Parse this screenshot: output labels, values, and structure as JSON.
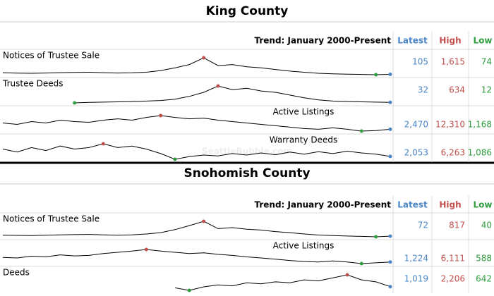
{
  "watermark": "SeattleBubble.com",
  "sections": [
    {
      "title": "King County",
      "trend_label": "Trend: January 2000-Present",
      "headers": {
        "latest": "Latest",
        "high": "High",
        "low": "Low"
      },
      "rows": [
        {
          "label": "Notices of Trustee Sale",
          "latest": "105",
          "high": "1,615",
          "low": "74",
          "trend": [
            250,
            220,
            200,
            230,
            260,
            280,
            300,
            260,
            230,
            250,
            300,
            450,
            700,
            1000,
            1615,
            900,
            1000,
            800,
            700,
            550,
            400,
            300,
            200,
            150,
            120,
            100,
            74,
            105
          ]
        },
        {
          "label": "Trustee Deeds",
          "latest": "32",
          "high": "634",
          "low": "12",
          "trend": [
            null,
            null,
            null,
            null,
            null,
            12,
            30,
            40,
            50,
            60,
            80,
            100,
            150,
            250,
            400,
            634,
            500,
            550,
            450,
            400,
            300,
            200,
            120,
            80,
            60,
            50,
            40,
            32
          ]
        },
        {
          "label": "Active Listings",
          "latest": "2,470",
          "high": "12,310",
          "low": "1,168",
          "trend": [
            7000,
            6000,
            8000,
            7000,
            9000,
            8000,
            7500,
            9000,
            10000,
            9000,
            11000,
            12310,
            11000,
            10000,
            10500,
            9000,
            8000,
            7000,
            6000,
            5000,
            4000,
            3000,
            2500,
            3500,
            2500,
            1168,
            1500,
            2470
          ]
        },
        {
          "label": "Warranty Deeds",
          "latest": "2,053",
          "high": "6,263",
          "low": "1,086",
          "trend": [
            4500,
            3500,
            5000,
            4000,
            5500,
            4500,
            5000,
            6263,
            5000,
            5500,
            4500,
            3000,
            1086,
            2000,
            2500,
            2200,
            3000,
            2500,
            3200,
            2600,
            3500,
            2800,
            3600,
            3000,
            3800,
            3200,
            2800,
            2053
          ]
        }
      ]
    },
    {
      "title": "Snohomish County",
      "trend_label": "Trend: January 2000-Present",
      "headers": {
        "latest": "Latest",
        "high": "High",
        "low": "Low"
      },
      "rows": [
        {
          "label": "Notices of Trustee Sale",
          "latest": "72",
          "high": "817",
          "low": "40",
          "trend": [
            120,
            110,
            100,
            120,
            140,
            150,
            160,
            140,
            120,
            140,
            180,
            250,
            400,
            600,
            817,
            450,
            500,
            420,
            380,
            300,
            250,
            180,
            130,
            100,
            80,
            60,
            40,
            72
          ]
        },
        {
          "label": "Active Listings",
          "latest": "1,224",
          "high": "6,111",
          "low": "588",
          "trend": [
            3000,
            2800,
            3500,
            3200,
            4000,
            3600,
            3800,
            4500,
            5000,
            5500,
            6111,
            5500,
            5000,
            4500,
            4800,
            4200,
            3800,
            3200,
            2800,
            2300,
            1800,
            1400,
            1200,
            1600,
            1200,
            588,
            900,
            1224
          ]
        },
        {
          "label": "Deeds",
          "latest": "1,019",
          "high": "2,206",
          "low": "642",
          "trend": [
            null,
            null,
            null,
            null,
            null,
            null,
            null,
            null,
            null,
            null,
            null,
            null,
            900,
            642,
            1000,
            1200,
            1100,
            1400,
            1300,
            1500,
            1400,
            1700,
            1600,
            1900,
            2206,
            1700,
            1500,
            1019
          ]
        }
      ]
    }
  ]
}
